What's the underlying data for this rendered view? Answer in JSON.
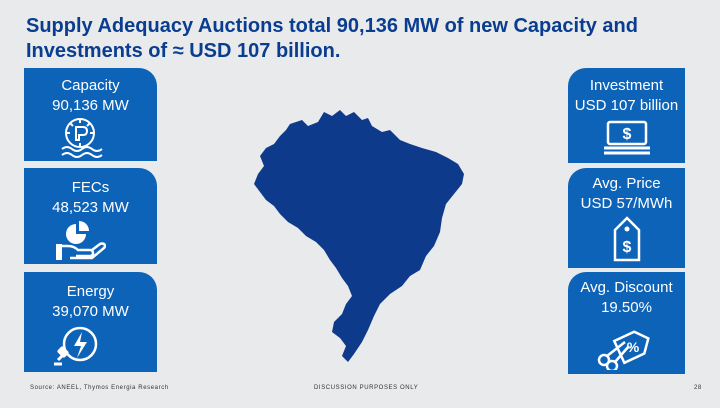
{
  "title": {
    "line1": "Supply Adequacy Auctions total 90,136 MW of new Capacity and",
    "line2": "Investments of ≈ USD 107 billion."
  },
  "cards": {
    "capacity": {
      "line1": "Capacity",
      "line2": "90,136 MW",
      "icon": "power-plant-icon"
    },
    "fecs": {
      "line1": "FECs",
      "line2": "48,523 MW",
      "icon": "hand-pie-chart-icon"
    },
    "energy": {
      "line1": "Energy",
      "line2": "39,070 MW",
      "icon": "plug-lightning-icon"
    },
    "investment": {
      "line1": "Investment",
      "line2": "USD 107 billion",
      "icon": "money-stack-icon"
    },
    "price": {
      "line1": "Avg. Price",
      "line2": "USD 57/MWh",
      "icon": "price-tag-icon"
    },
    "discount": {
      "line1": "Avg.  Discount",
      "line2": "19.50%",
      "icon": "scissors-discount-tag-icon"
    }
  },
  "footer": {
    "source": "Source: ANEEL, Thymos Energia Research",
    "center": "DISCUSSION PURPOSES ONLY",
    "page": "28"
  },
  "colors": {
    "card": "#0d63b8",
    "map": "#0e3a8c",
    "title": "#0a3d8f",
    "background": "#e9eaec"
  }
}
